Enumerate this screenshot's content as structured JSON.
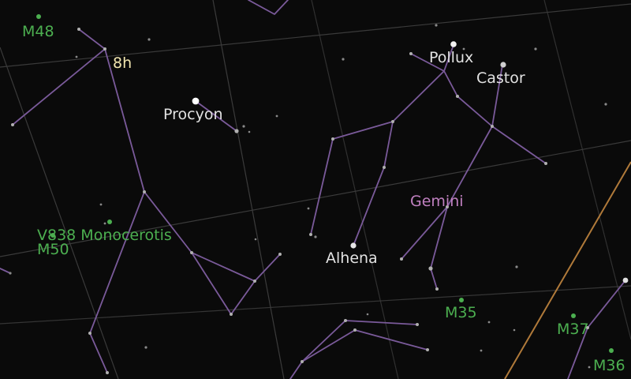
{
  "map": {
    "grid_label": "8h",
    "constellation": "Gemini",
    "stars": [
      "Pollux",
      "Castor",
      "Procyon",
      "Alhena"
    ],
    "deep_sky": [
      "M48",
      "V838 Monocerotis",
      "M50",
      "M35",
      "M37",
      "M36"
    ]
  },
  "colors": {
    "background": "#0a0a0a",
    "grid": "#3a3a3a",
    "constellation_lines": "#7a5a9a",
    "ecliptic": "#b07a3a",
    "star": "#e6e6e6",
    "deep_sky": "#4caf50",
    "constellation_label": "#c080c0",
    "grid_label": "#f2e6b0"
  }
}
